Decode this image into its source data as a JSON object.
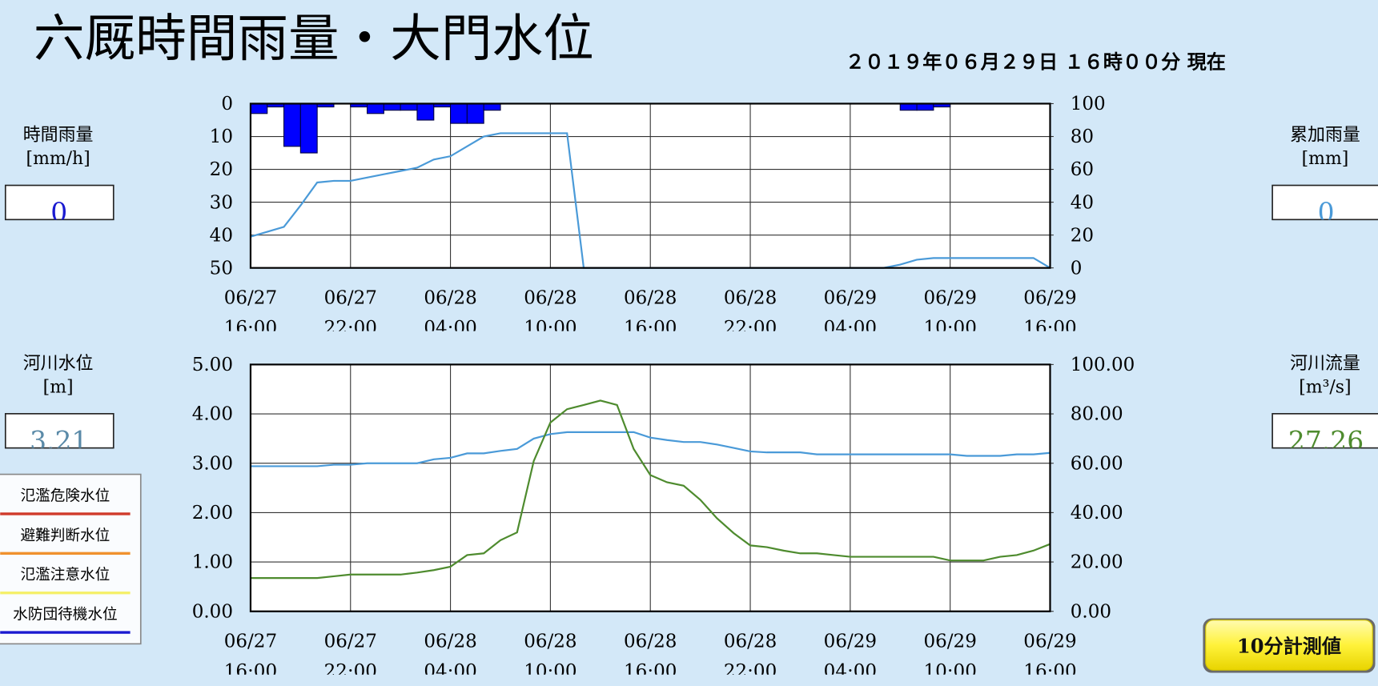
{
  "title": "六厩時間雨量・大門水位",
  "timestamp": "２０１９年０６月２９日 １６時００分 現在",
  "panels": {
    "hourly_rain": {
      "label": "時間雨量",
      "unit": "[mm/h]",
      "value": "0"
    },
    "cumulative_rain": {
      "label": "累加雨量",
      "unit": "[mm]",
      "value": "0"
    },
    "river_level": {
      "label": "河川水位",
      "unit": "[m]",
      "value": "3.21"
    },
    "river_flow": {
      "label": "河川流量",
      "unit": "[m³/s]",
      "value": "27.26"
    }
  },
  "legend": [
    {
      "label": "氾濫危険水位",
      "color": "#d03a2a"
    },
    {
      "label": "避難判断水位",
      "color": "#f0922e"
    },
    {
      "label": "氾濫注意水位",
      "color": "#f5f06a"
    },
    {
      "label": "水防団待機水位",
      "color": "#1a1ad0"
    }
  ],
  "button": "10分計測値",
  "chart_data": [
    {
      "type": "combo",
      "categories": [
        [
          "06/27",
          "16:00"
        ],
        null,
        null,
        null,
        null,
        null,
        [
          "06/27",
          "22:00"
        ],
        null,
        null,
        null,
        null,
        null,
        [
          "06/28",
          "04:00"
        ],
        null,
        null,
        null,
        null,
        null,
        [
          "06/28",
          "10:00"
        ],
        null,
        null,
        null,
        null,
        null,
        [
          "06/28",
          "16:00"
        ],
        null,
        null,
        null,
        null,
        null,
        [
          "06/28",
          "22:00"
        ],
        null,
        null,
        null,
        null,
        null,
        [
          "06/29",
          "04:00"
        ],
        null,
        null,
        null,
        null,
        null,
        [
          "06/29",
          "10:00"
        ],
        null,
        null,
        null,
        null,
        null,
        [
          "06/29",
          "16:00"
        ]
      ],
      "series": [
        {
          "type": "bar",
          "color": "#0000ff",
          "values": [
            null,
            3,
            1,
            13,
            15,
            1,
            0,
            1,
            3,
            2,
            2,
            5,
            1,
            6,
            6,
            2,
            0,
            0,
            0,
            0,
            0,
            0,
            0,
            0,
            0,
            0,
            0,
            0,
            0,
            0,
            0,
            0,
            0,
            0,
            0,
            0,
            0,
            0,
            0,
            0,
            2,
            2,
            1,
            0,
            0,
            0,
            0,
            0,
            0
          ]
        },
        {
          "type": "line",
          "axis": "y2",
          "color": "#4a9ad8",
          "values": [
            19,
            22,
            25,
            38,
            52,
            53,
            53,
            55,
            57,
            59,
            61,
            66,
            68,
            74,
            80,
            82,
            82,
            82,
            82,
            82,
            0,
            0,
            0,
            0,
            0,
            0,
            0,
            0,
            0,
            0,
            0,
            0,
            0,
            0,
            0,
            0,
            0,
            0,
            0,
            2,
            5,
            6,
            6,
            6,
            6,
            6,
            6,
            6,
            0
          ]
        }
      ],
      "ylim": [
        50,
        0
      ],
      "yticks": [
        0,
        10,
        20,
        30,
        40,
        50
      ],
      "y2lim": [
        0,
        100
      ],
      "y2ticks": [
        0,
        20,
        40,
        60,
        80,
        100
      ],
      "grid": true
    },
    {
      "type": "line",
      "categories": [
        [
          "06/27",
          "16:00"
        ],
        null,
        null,
        null,
        null,
        null,
        [
          "06/27",
          "22:00"
        ],
        null,
        null,
        null,
        null,
        null,
        [
          "06/28",
          "04:00"
        ],
        null,
        null,
        null,
        null,
        null,
        [
          "06/28",
          "10:00"
        ],
        null,
        null,
        null,
        null,
        null,
        [
          "06/28",
          "16:00"
        ],
        null,
        null,
        null,
        null,
        null,
        [
          "06/28",
          "22:00"
        ],
        null,
        null,
        null,
        null,
        null,
        [
          "06/29",
          "04:00"
        ],
        null,
        null,
        null,
        null,
        null,
        [
          "06/29",
          "10:00"
        ],
        null,
        null,
        null,
        null,
        null,
        [
          "06/29",
          "16:00"
        ]
      ],
      "series": [
        {
          "type": "line",
          "color": "#4a9ad8",
          "values": [
            2.94,
            2.94,
            2.94,
            2.94,
            2.94,
            2.97,
            2.97,
            3.0,
            3.0,
            3.0,
            3.0,
            3.08,
            3.11,
            3.2,
            3.2,
            3.25,
            3.29,
            3.5,
            3.59,
            3.63,
            3.63,
            3.63,
            3.63,
            3.63,
            3.52,
            3.47,
            3.43,
            3.43,
            3.38,
            3.31,
            3.24,
            3.22,
            3.22,
            3.22,
            3.18,
            3.18,
            3.18,
            3.18,
            3.18,
            3.18,
            3.18,
            3.18,
            3.18,
            3.15,
            3.15,
            3.15,
            3.18,
            3.18,
            3.21
          ]
        },
        {
          "type": "line",
          "axis": "y2",
          "color": "#4e8b2e",
          "values": [
            13.5,
            13.5,
            13.5,
            13.5,
            13.5,
            14.2,
            14.9,
            14.9,
            14.9,
            14.9,
            15.7,
            16.7,
            18.1,
            22.8,
            23.5,
            28.8,
            32.0,
            60.9,
            76.5,
            81.9,
            83.6,
            85.4,
            83.6,
            65.8,
            55.2,
            52.3,
            50.9,
            45.2,
            37.7,
            31.7,
            26.7,
            26.0,
            24.6,
            23.5,
            23.5,
            22.8,
            22.1,
            22.1,
            22.1,
            22.1,
            22.1,
            22.1,
            20.6,
            20.6,
            20.6,
            22.1,
            22.8,
            24.6,
            27.26
          ]
        }
      ],
      "ylim": [
        0,
        5
      ],
      "yticks": [
        {
          "value": 0,
          "label": "0.00"
        },
        {
          "value": 1,
          "label": "1.00"
        },
        {
          "value": 2,
          "label": "2.00"
        },
        {
          "value": 3,
          "label": "3.00"
        },
        {
          "value": 4,
          "label": "4.00"
        },
        {
          "value": 5,
          "label": "5.00"
        }
      ],
      "y2lim": [
        0,
        100
      ],
      "y2ticks": [
        {
          "value": 0,
          "label": "0.00"
        },
        {
          "value": 20,
          "label": "20.00"
        },
        {
          "value": 40,
          "label": "40.00"
        },
        {
          "value": 60,
          "label": "60.00"
        },
        {
          "value": 80,
          "label": "80.00"
        },
        {
          "value": 100,
          "label": "100.00"
        }
      ],
      "grid": true
    }
  ]
}
